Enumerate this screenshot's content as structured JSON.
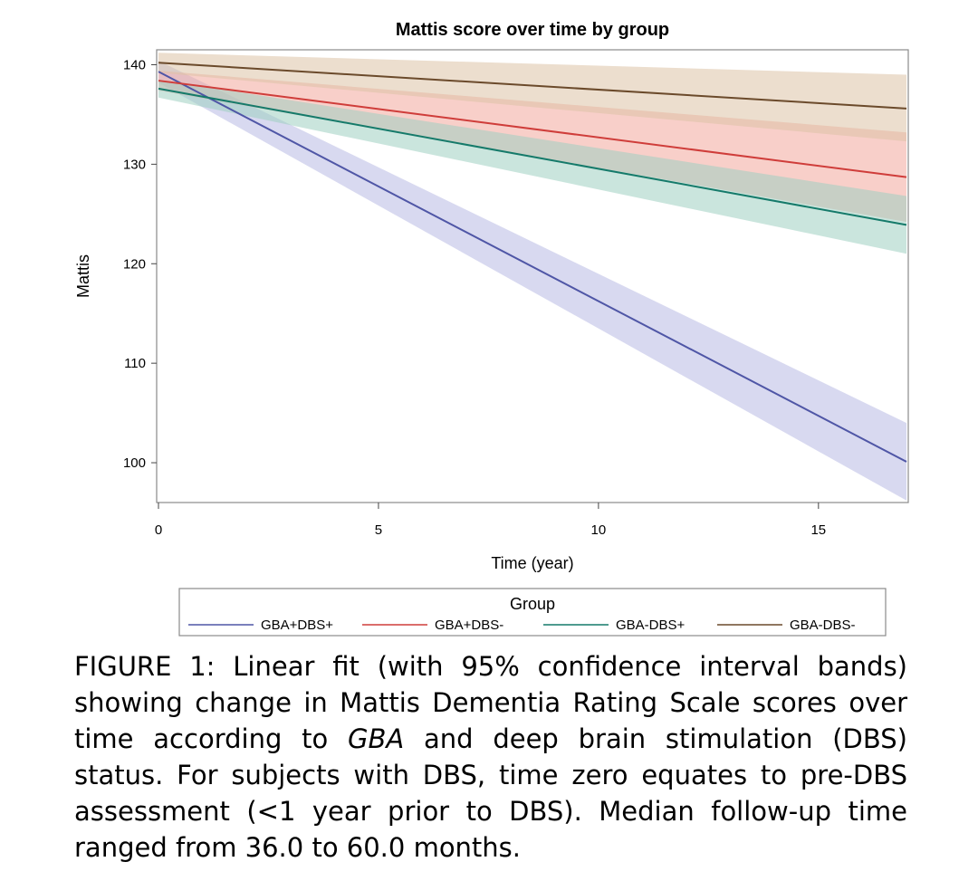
{
  "chart_data": {
    "type": "line",
    "title": "Mattis score over time by group",
    "xlabel": "Time (year)",
    "ylabel": "Mattis",
    "xlim": [
      0,
      17
    ],
    "ylim": [
      96,
      141.5
    ],
    "xticks": [
      0,
      5,
      10,
      15
    ],
    "yticks": [
      100,
      110,
      120,
      130,
      140
    ],
    "grid": false,
    "legend": {
      "title": "Group",
      "placement": "bottom"
    },
    "series": [
      {
        "name": "GBA+DBS+",
        "color": "#4f56a6",
        "band_color": "#b8b9e4",
        "x": [
          0,
          17
        ],
        "y": [
          139.3,
          100.1
        ],
        "lower": [
          138.2,
          96.2
        ],
        "upper": [
          140.4,
          104.0
        ]
      },
      {
        "name": "GBA+DBS-",
        "color": "#cf3d3a",
        "band_color": "#f3a89d",
        "x": [
          0,
          17
        ],
        "y": [
          138.4,
          128.7
        ],
        "lower": [
          137.4,
          124.2
        ],
        "upper": [
          139.4,
          133.2
        ]
      },
      {
        "name": "GBA-DBS+",
        "color": "#157a6a",
        "band_color": "#9fcfc1",
        "x": [
          0,
          17
        ],
        "y": [
          137.6,
          123.9
        ],
        "lower": [
          136.7,
          121.0
        ],
        "upper": [
          138.5,
          126.8
        ]
      },
      {
        "name": "GBA-DBS-",
        "color": "#6b4a2b",
        "band_color": "#dcc2a6",
        "x": [
          0,
          17
        ],
        "y": [
          140.2,
          135.6
        ],
        "lower": [
          139.2,
          132.3
        ],
        "upper": [
          141.2,
          139.0
        ]
      }
    ]
  },
  "caption": {
    "prefix": "FIGURE 1: Linear fit (with 95% confidence interval bands) showing change in Mattis Dementia Rating Scale scores over time according to ",
    "emphasis": "GBA",
    "suffix": " and deep brain stimulation (DBS) status. For subjects with DBS, time zero equates to pre-DBS assessment (<1 year prior to DBS). Median follow-up time ranged from 36.0 to 60.0 months."
  }
}
